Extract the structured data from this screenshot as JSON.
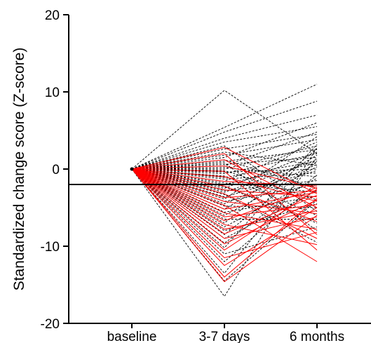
{
  "chart_data": {
    "type": "line",
    "xlabel": "",
    "ylabel": "Standardized change score (Z-score)",
    "categories": [
      "baseline",
      "3-7 days",
      "6 months"
    ],
    "ylim": [
      -20,
      20
    ],
    "yticks": [
      20,
      10,
      0,
      -10,
      -20
    ],
    "reference_line": {
      "y": -2,
      "style": "solid",
      "color": "#000000"
    },
    "grid": false,
    "legend": "none",
    "colors": {
      "dashed_series": "#000000",
      "solid_series": "#ff0000"
    },
    "series": [
      {
        "style": "dashed",
        "values": [
          0,
          10.2,
          2.0
        ]
      },
      {
        "style": "dashed",
        "values": [
          0,
          5.4,
          11.0
        ]
      },
      {
        "style": "dashed",
        "values": [
          0,
          4.8,
          8.8
        ]
      },
      {
        "style": "dashed",
        "values": [
          0,
          4.0,
          7.0
        ]
      },
      {
        "style": "dashed",
        "values": [
          0,
          3.5,
          5.5
        ]
      },
      {
        "style": "dashed",
        "values": [
          0,
          3.0,
          -5.5
        ]
      },
      {
        "style": "dashed",
        "values": [
          0,
          2.6,
          4.5
        ]
      },
      {
        "style": "dashed",
        "values": [
          0,
          2.2,
          0.5
        ]
      },
      {
        "style": "dashed",
        "values": [
          0,
          1.8,
          3.8
        ]
      },
      {
        "style": "dashed",
        "values": [
          0,
          1.5,
          6.0
        ]
      },
      {
        "style": "dashed",
        "values": [
          0,
          1.2,
          -2.5
        ]
      },
      {
        "style": "dashed",
        "values": [
          0,
          1.0,
          2.5
        ]
      },
      {
        "style": "dashed",
        "values": [
          0,
          0.8,
          -8.0
        ]
      },
      {
        "style": "dashed",
        "values": [
          0,
          0.6,
          1.5
        ]
      },
      {
        "style": "dashed",
        "values": [
          0,
          0.4,
          4.8
        ]
      },
      {
        "style": "dashed",
        "values": [
          0,
          0.2,
          -1.0
        ]
      },
      {
        "style": "dashed",
        "values": [
          0,
          0.0,
          3.0
        ]
      },
      {
        "style": "dashed",
        "values": [
          0,
          -0.2,
          -4.0
        ]
      },
      {
        "style": "dashed",
        "values": [
          0,
          -0.4,
          0.0
        ]
      },
      {
        "style": "dashed",
        "values": [
          0,
          -0.6,
          2.0
        ]
      },
      {
        "style": "dashed",
        "values": [
          0,
          -0.9,
          -6.0
        ]
      },
      {
        "style": "dashed",
        "values": [
          0,
          -1.1,
          1.0
        ]
      },
      {
        "style": "dashed",
        "values": [
          0,
          -1.3,
          -0.5
        ]
      },
      {
        "style": "dashed",
        "values": [
          0,
          -1.6,
          3.5
        ]
      },
      {
        "style": "dashed",
        "values": [
          0,
          -1.8,
          -3.0
        ]
      },
      {
        "style": "dashed",
        "values": [
          0,
          -2.0,
          0.8
        ]
      },
      {
        "style": "dashed",
        "values": [
          0,
          -2.3,
          -7.0
        ]
      },
      {
        "style": "dashed",
        "values": [
          0,
          -2.5,
          2.2
        ]
      },
      {
        "style": "dashed",
        "values": [
          0,
          -2.8,
          -1.5
        ]
      },
      {
        "style": "dashed",
        "values": [
          0,
          -3.0,
          1.2
        ]
      },
      {
        "style": "dashed",
        "values": [
          0,
          -3.3,
          -9.5
        ]
      },
      {
        "style": "dashed",
        "values": [
          0,
          -3.6,
          -0.2
        ]
      },
      {
        "style": "dashed",
        "values": [
          0,
          -3.9,
          4.2
        ]
      },
      {
        "style": "dashed",
        "values": [
          0,
          -4.2,
          -2.0
        ]
      },
      {
        "style": "dashed",
        "values": [
          0,
          -4.5,
          0.6
        ]
      },
      {
        "style": "dashed",
        "values": [
          0,
          -4.8,
          -5.0
        ]
      },
      {
        "style": "dashed",
        "values": [
          0,
          -5.2,
          1.8
        ]
      },
      {
        "style": "dashed",
        "values": [
          0,
          -5.6,
          -3.5
        ]
      },
      {
        "style": "dashed",
        "values": [
          0,
          -6.0,
          0.3
        ]
      },
      {
        "style": "dashed",
        "values": [
          0,
          -6.5,
          -6.5
        ]
      },
      {
        "style": "dashed",
        "values": [
          0,
          -7.0,
          2.6
        ]
      },
      {
        "style": "dashed",
        "values": [
          0,
          -7.5,
          -1.2
        ]
      },
      {
        "style": "dashed",
        "values": [
          0,
          -8.0,
          -4.5
        ]
      },
      {
        "style": "dashed",
        "values": [
          0,
          -8.5,
          1.0
        ]
      },
      {
        "style": "dashed",
        "values": [
          0,
          -9.0,
          -2.8
        ]
      },
      {
        "style": "dashed",
        "values": [
          0,
          -9.6,
          -0.8
        ]
      },
      {
        "style": "dashed",
        "values": [
          0,
          -10.2,
          3.2
        ]
      },
      {
        "style": "dashed",
        "values": [
          0,
          -11.0,
          -7.5
        ]
      },
      {
        "style": "dashed",
        "values": [
          0,
          -12.0,
          -1.8
        ]
      },
      {
        "style": "dashed",
        "values": [
          0,
          -13.5,
          1.5
        ]
      },
      {
        "style": "dashed",
        "values": [
          0,
          -14.5,
          -4.0
        ]
      },
      {
        "style": "dashed",
        "values": [
          0,
          -16.5,
          2.8
        ]
      },
      {
        "style": "solid",
        "values": [
          0,
          2.8,
          -3.2
        ]
      },
      {
        "style": "solid",
        "values": [
          0,
          2.0,
          -8.5
        ]
      },
      {
        "style": "solid",
        "values": [
          0,
          1.2,
          -5.0
        ]
      },
      {
        "style": "solid",
        "values": [
          0,
          0.4,
          -2.5
        ]
      },
      {
        "style": "solid",
        "values": [
          0,
          -0.3,
          -10.5
        ]
      },
      {
        "style": "solid",
        "values": [
          0,
          -1.0,
          -4.2
        ]
      },
      {
        "style": "solid",
        "values": [
          0,
          -1.6,
          -2.2
        ]
      },
      {
        "style": "solid",
        "values": [
          0,
          -2.2,
          -6.8
        ]
      },
      {
        "style": "solid",
        "values": [
          0,
          -2.7,
          -3.6
        ]
      },
      {
        "style": "solid",
        "values": [
          0,
          -3.2,
          -9.0
        ]
      },
      {
        "style": "solid",
        "values": [
          0,
          -3.7,
          -2.8
        ]
      },
      {
        "style": "solid",
        "values": [
          0,
          -4.2,
          -5.8
        ]
      },
      {
        "style": "solid",
        "values": [
          0,
          -4.7,
          -12.0
        ]
      },
      {
        "style": "solid",
        "values": [
          0,
          -5.2,
          -3.0
        ]
      },
      {
        "style": "solid",
        "values": [
          0,
          -5.7,
          -7.8
        ]
      },
      {
        "style": "solid",
        "values": [
          0,
          -6.2,
          -4.6
        ]
      },
      {
        "style": "solid",
        "values": [
          0,
          -6.7,
          -2.4
        ]
      },
      {
        "style": "solid",
        "values": [
          0,
          -7.2,
          -9.8
        ]
      },
      {
        "style": "solid",
        "values": [
          0,
          -7.8,
          -5.4
        ]
      },
      {
        "style": "solid",
        "values": [
          0,
          -8.4,
          -3.4
        ]
      },
      {
        "style": "solid",
        "values": [
          0,
          -9.0,
          -6.2
        ]
      },
      {
        "style": "solid",
        "values": [
          0,
          -9.7,
          -4.0
        ]
      },
      {
        "style": "solid",
        "values": [
          0,
          -10.5,
          -2.6
        ]
      },
      {
        "style": "solid",
        "values": [
          0,
          -11.5,
          -8.2
        ]
      },
      {
        "style": "solid",
        "values": [
          0,
          -12.5,
          -5.0
        ]
      },
      {
        "style": "solid",
        "values": [
          0,
          -14.0,
          -3.8
        ]
      },
      {
        "style": "solid",
        "values": [
          0,
          -14.6,
          -6.0
        ]
      }
    ]
  }
}
